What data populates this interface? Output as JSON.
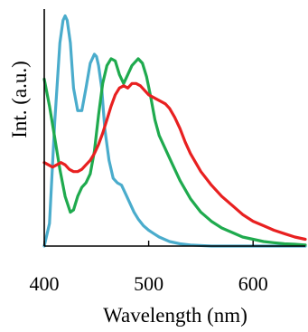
{
  "chart_data": {
    "type": "line",
    "xlabel": "Wavelength (nm)",
    "ylabel": "Int. (a.u.)",
    "xlim": [
      400,
      650
    ],
    "ylim": [
      0,
      1.05
    ],
    "xticks": [
      400,
      500,
      600
    ],
    "grid": false,
    "legend": "none",
    "series": [
      {
        "color": "#4aaccc",
        "x": [
          400,
          405,
          410,
          415,
          418,
          420,
          422,
          425,
          428,
          432,
          436,
          440,
          444,
          448,
          450,
          452,
          455,
          458,
          462,
          466,
          470,
          474,
          478,
          482,
          486,
          490,
          495,
          500,
          505,
          510,
          520,
          530,
          540,
          560,
          600,
          650
        ],
        "y": [
          0.0,
          0.1,
          0.55,
          0.9,
          1.0,
          1.02,
          1.0,
          0.9,
          0.7,
          0.6,
          0.6,
          0.7,
          0.81,
          0.85,
          0.84,
          0.8,
          0.7,
          0.52,
          0.38,
          0.3,
          0.28,
          0.27,
          0.23,
          0.19,
          0.15,
          0.12,
          0.09,
          0.07,
          0.055,
          0.04,
          0.02,
          0.01,
          0.005,
          0.0,
          0.0,
          0.0
        ]
      },
      {
        "color": "#1faa4e",
        "x": [
          400,
          405,
          410,
          415,
          420,
          425,
          428,
          432,
          436,
          440,
          444,
          448,
          452,
          456,
          460,
          464,
          468,
          472,
          476,
          480,
          484,
          488,
          490,
          494,
          498,
          502,
          506,
          510,
          516,
          522,
          530,
          540,
          550,
          560,
          570,
          580,
          590,
          600,
          610,
          620,
          630,
          640,
          650
        ],
        "y": [
          0.74,
          0.62,
          0.48,
          0.34,
          0.22,
          0.15,
          0.16,
          0.22,
          0.26,
          0.28,
          0.32,
          0.42,
          0.58,
          0.72,
          0.8,
          0.83,
          0.82,
          0.76,
          0.72,
          0.76,
          0.8,
          0.82,
          0.83,
          0.81,
          0.75,
          0.66,
          0.56,
          0.49,
          0.43,
          0.37,
          0.29,
          0.21,
          0.15,
          0.11,
          0.08,
          0.06,
          0.04,
          0.03,
          0.02,
          0.015,
          0.01,
          0.008,
          0.005
        ]
      },
      {
        "color": "#e82020",
        "x": [
          400,
          404,
          408,
          412,
          416,
          420,
          424,
          428,
          432,
          436,
          440,
          444,
          448,
          452,
          456,
          460,
          464,
          468,
          472,
          476,
          480,
          484,
          488,
          492,
          496,
          500,
          504,
          508,
          512,
          516,
          520,
          525,
          530,
          535,
          540,
          545,
          550,
          555,
          560,
          570,
          580,
          590,
          600,
          610,
          620,
          630,
          640,
          650
        ],
        "y": [
          0.37,
          0.36,
          0.35,
          0.36,
          0.37,
          0.36,
          0.34,
          0.33,
          0.33,
          0.34,
          0.36,
          0.38,
          0.41,
          0.45,
          0.5,
          0.56,
          0.62,
          0.67,
          0.7,
          0.71,
          0.7,
          0.72,
          0.72,
          0.71,
          0.69,
          0.67,
          0.66,
          0.65,
          0.64,
          0.63,
          0.61,
          0.57,
          0.52,
          0.46,
          0.41,
          0.37,
          0.33,
          0.3,
          0.27,
          0.22,
          0.18,
          0.14,
          0.11,
          0.09,
          0.07,
          0.055,
          0.04,
          0.03
        ]
      }
    ]
  }
}
